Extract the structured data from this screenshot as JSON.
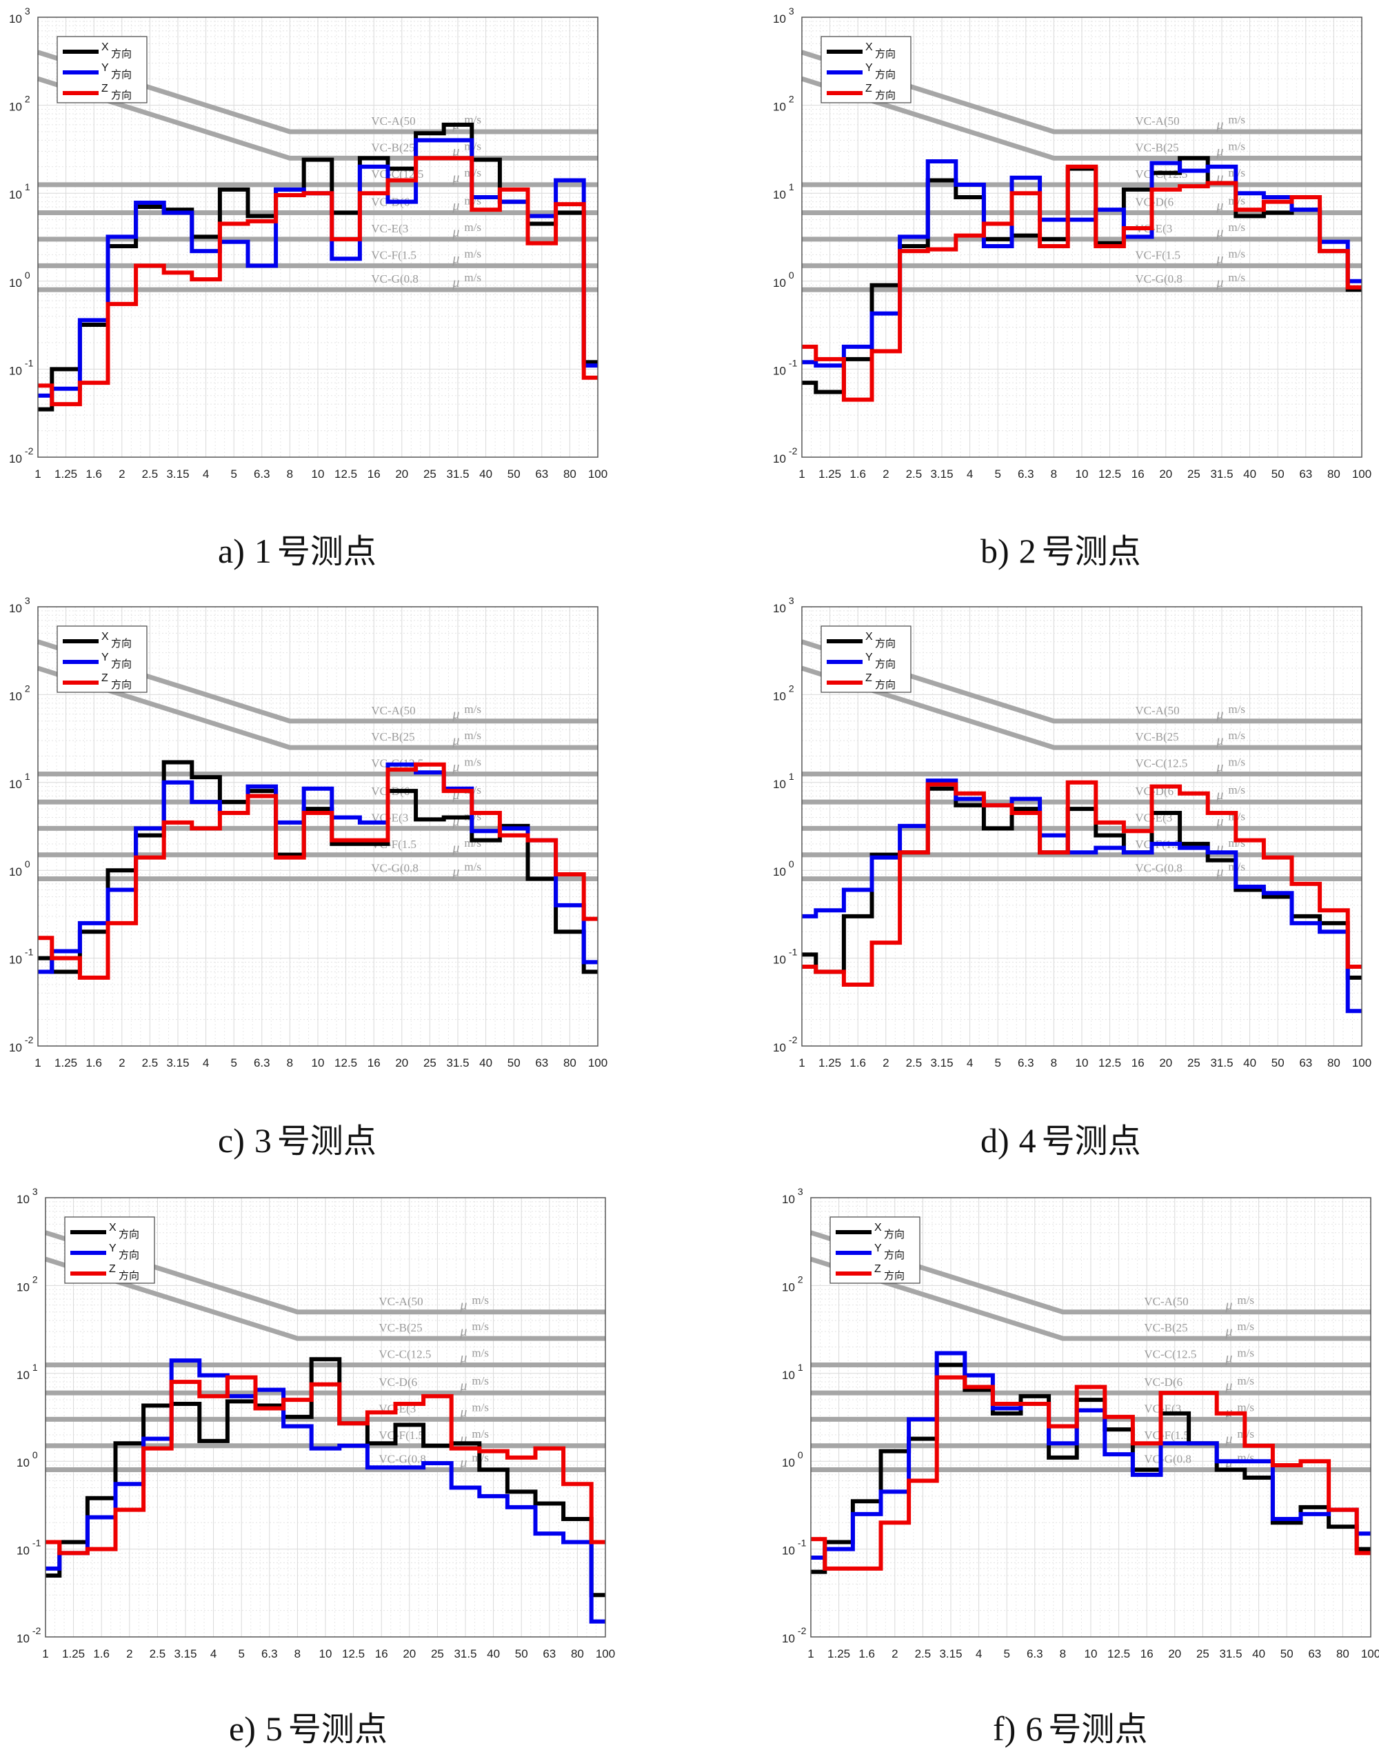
{
  "colors": {
    "X": "#000000",
    "Y": "#0000ee",
    "Z": "#ee0000",
    "criteria": "#a6a6a6",
    "grid": "#d9d9d9"
  },
  "x_tick_labels": [
    "1",
    "1.25",
    "1.6",
    "2",
    "2.5",
    "3.15",
    "4",
    "5",
    "6.3",
    "8",
    "10",
    "12.5",
    "16",
    "20",
    "25",
    "31.5",
    "40",
    "50",
    "63",
    "80",
    "100"
  ],
  "y_tick_labels": [
    {
      "base": "10",
      "exp": "3"
    },
    {
      "base": "10",
      "exp": "2"
    },
    {
      "base": "10",
      "exp": "1"
    },
    {
      "base": "10",
      "exp": "0"
    },
    {
      "base": "10",
      "exp": "-1"
    },
    {
      "base": "10",
      "exp": "-2"
    }
  ],
  "legend": [
    {
      "key": "X",
      "letter": "X",
      "text": "方向"
    },
    {
      "key": "Y",
      "letter": "Y",
      "text": "方向"
    },
    {
      "key": "Z",
      "letter": "Z",
      "text": "方向"
    }
  ],
  "criteria": [
    {
      "label": "VC-A(50",
      "unit": "m/s",
      "value": 50,
      "sloped": true
    },
    {
      "label": "VC-B(25",
      "unit": "m/s",
      "value": 25,
      "sloped": true
    },
    {
      "label": "VC-C(12.5",
      "unit": "m/s",
      "value": 12.5
    },
    {
      "label": "VC-D(6",
      "unit": "m/s",
      "value": 6
    },
    {
      "label": "VC-E(3",
      "unit": "m/s",
      "value": 3
    },
    {
      "label": "VC-F(1.5",
      "unit": "m/s",
      "value": 1.5
    },
    {
      "label": "VC-G(0.8",
      "unit": "m/s",
      "value": 0.8
    }
  ],
  "criteria_mu": "μ",
  "captions": [
    {
      "letter": "a)",
      "num": "1",
      "suffix": "号测点"
    },
    {
      "letter": "b)",
      "num": "2",
      "suffix": "号测点"
    },
    {
      "letter": "c)",
      "num": "3",
      "suffix": "号测点"
    },
    {
      "letter": "d)",
      "num": "4",
      "suffix": "号测点"
    },
    {
      "letter": "e)",
      "num": "5",
      "suffix": "号测点"
    },
    {
      "letter": "f)",
      "num": "6",
      "suffix": "号测点"
    }
  ],
  "chart_data": [
    {
      "type": "line",
      "step": true,
      "log_y": true,
      "ylim": [
        0.01,
        1000
      ],
      "x": [
        1,
        1.25,
        1.6,
        2,
        2.5,
        3.15,
        4,
        5,
        6.3,
        8,
        10,
        12.5,
        16,
        20,
        25,
        31.5,
        40,
        50,
        63,
        80,
        100
      ],
      "series": [
        {
          "name": "X方向",
          "values": [
            0.035,
            0.1,
            0.32,
            2.5,
            7.0,
            6.5,
            3.2,
            11,
            5.5,
            11,
            24,
            6,
            25,
            19,
            48,
            60,
            24,
            8,
            4.5,
            6,
            0.12
          ]
        },
        {
          "name": "Y方向",
          "values": [
            0.05,
            0.06,
            0.36,
            3.2,
            7.8,
            6.0,
            2.2,
            2.8,
            1.5,
            11,
            10,
            1.8,
            20,
            8,
            40,
            40,
            9,
            8,
            5.5,
            14,
            0.11
          ]
        },
        {
          "name": "Z方向",
          "values": [
            0.065,
            0.04,
            0.07,
            0.55,
            1.5,
            1.25,
            1.05,
            4.5,
            4.8,
            9.5,
            10,
            3,
            10,
            14,
            25,
            25,
            6.5,
            11,
            2.7,
            7.5,
            0.08
          ]
        }
      ]
    },
    {
      "type": "line",
      "step": true,
      "log_y": true,
      "ylim": [
        0.01,
        1000
      ],
      "x": [
        1,
        1.25,
        1.6,
        2,
        2.5,
        3.15,
        4,
        5,
        6.3,
        8,
        10,
        12.5,
        16,
        20,
        25,
        31.5,
        40,
        50,
        63,
        80,
        100
      ],
      "series": [
        {
          "name": "X方向",
          "values": [
            0.07,
            0.055,
            0.13,
            0.9,
            2.5,
            14,
            9,
            3,
            3.3,
            3,
            19,
            2.7,
            11,
            17,
            25,
            13,
            5.5,
            6,
            6.5,
            2.2,
            0.8
          ]
        },
        {
          "name": "Y方向",
          "values": [
            0.12,
            0.11,
            0.18,
            0.43,
            3.2,
            23,
            12.5,
            2.5,
            15,
            5,
            5,
            6.5,
            3.2,
            22,
            18,
            20,
            10,
            9,
            6.5,
            2.8,
            1.0
          ]
        },
        {
          "name": "Z方向",
          "values": [
            0.18,
            0.13,
            0.045,
            0.16,
            2.2,
            2.3,
            3.3,
            4.5,
            10,
            2.5,
            20,
            2.5,
            4,
            11,
            12,
            13,
            6.5,
            8,
            9,
            2.2,
            0.85
          ]
        }
      ]
    },
    {
      "type": "line",
      "step": true,
      "log_y": true,
      "ylim": [
        0.01,
        1000
      ],
      "x": [
        1,
        1.25,
        1.6,
        2,
        2.5,
        3.15,
        4,
        5,
        6.3,
        8,
        10,
        12.5,
        16,
        20,
        25,
        31.5,
        40,
        50,
        63,
        80,
        100
      ],
      "series": [
        {
          "name": "X方向",
          "values": [
            0.1,
            0.07,
            0.2,
            1.0,
            2.5,
            17,
            11.5,
            6,
            8,
            1.5,
            5,
            2,
            2,
            8,
            3.8,
            4,
            2.2,
            3.2,
            0.8,
            0.2,
            0.07
          ]
        },
        {
          "name": "Y方向",
          "values": [
            0.07,
            0.12,
            0.25,
            0.6,
            3.0,
            10,
            6,
            4.5,
            9,
            3.5,
            8.5,
            4,
            3.5,
            16,
            13,
            8.5,
            2.8,
            3.0,
            2.2,
            0.4,
            0.09
          ]
        },
        {
          "name": "Z方向",
          "values": [
            0.17,
            0.1,
            0.06,
            0.25,
            1.4,
            3.5,
            3.0,
            4.5,
            7,
            1.4,
            4.5,
            2.2,
            2.2,
            14,
            16,
            8,
            4.5,
            2.5,
            2.2,
            0.9,
            0.28
          ]
        }
      ]
    },
    {
      "type": "line",
      "step": true,
      "log_y": true,
      "ylim": [
        0.01,
        1000
      ],
      "x": [
        1,
        1.25,
        1.6,
        2,
        2.5,
        3.15,
        4,
        5,
        6.3,
        8,
        10,
        12.5,
        16,
        20,
        25,
        31.5,
        40,
        50,
        63,
        80,
        100
      ],
      "series": [
        {
          "name": "X方向",
          "values": [
            0.11,
            0.07,
            0.3,
            1.5,
            1.6,
            8.5,
            5.5,
            3,
            5,
            1.6,
            5,
            2.5,
            1.6,
            4.5,
            2,
            1.3,
            0.6,
            0.5,
            0.3,
            0.25,
            0.06
          ]
        },
        {
          "name": "Y方向",
          "values": [
            0.3,
            0.35,
            0.6,
            1.4,
            3.2,
            10.5,
            6.5,
            5.5,
            6.5,
            2.5,
            1.6,
            1.8,
            1.6,
            2,
            1.8,
            1.6,
            0.65,
            0.55,
            0.25,
            0.2,
            0.025
          ]
        },
        {
          "name": "Z方向",
          "values": [
            0.08,
            0.07,
            0.05,
            0.15,
            1.6,
            9.5,
            7.5,
            5.5,
            4.5,
            1.6,
            10,
            3.5,
            2.8,
            9,
            7.5,
            4.5,
            2.2,
            1.4,
            0.7,
            0.35,
            0.08
          ]
        }
      ]
    },
    {
      "type": "line",
      "step": true,
      "log_y": true,
      "ylim": [
        0.01,
        1000
      ],
      "x": [
        1,
        1.25,
        1.6,
        2,
        2.5,
        3.15,
        4,
        5,
        6.3,
        8,
        10,
        12.5,
        16,
        20,
        25,
        31.5,
        40,
        50,
        63,
        80,
        100
      ],
      "series": [
        {
          "name": "X方向",
          "values": [
            0.05,
            0.12,
            0.38,
            1.6,
            4.3,
            4.5,
            1.7,
            4.8,
            4.3,
            3.2,
            14.5,
            2.7,
            1.6,
            2.6,
            1.5,
            1.6,
            0.8,
            0.45,
            0.33,
            0.22,
            0.03
          ]
        },
        {
          "name": "Y方向",
          "values": [
            0.06,
            0.09,
            0.23,
            0.55,
            1.8,
            14,
            9.5,
            5.5,
            6.5,
            2.5,
            1.4,
            1.5,
            0.85,
            0.85,
            0.95,
            0.5,
            0.4,
            0.3,
            0.15,
            0.12,
            0.015
          ]
        },
        {
          "name": "Z方向",
          "values": [
            0.12,
            0.09,
            0.1,
            0.28,
            1.4,
            8,
            5.5,
            9,
            4,
            5,
            7.5,
            2.7,
            3.6,
            4.5,
            5.5,
            1.4,
            1.3,
            1.1,
            1.4,
            0.55,
            0.12
          ]
        }
      ]
    },
    {
      "type": "line",
      "step": true,
      "log_y": true,
      "ylim": [
        0.01,
        1000
      ],
      "x": [
        1,
        1.25,
        1.6,
        2,
        2.5,
        3.15,
        4,
        5,
        6.3,
        8,
        10,
        12.5,
        16,
        20,
        25,
        31.5,
        40,
        50,
        63,
        80,
        100
      ],
      "series": [
        {
          "name": "X方向",
          "values": [
            0.055,
            0.12,
            0.35,
            1.3,
            1.8,
            12.5,
            6.5,
            3.5,
            5.5,
            1.1,
            5,
            2.3,
            0.8,
            3.5,
            1.6,
            0.8,
            0.65,
            0.2,
            0.3,
            0.18,
            0.1
          ]
        },
        {
          "name": "Y方向",
          "values": [
            0.08,
            0.1,
            0.25,
            0.45,
            3.0,
            17,
            9.5,
            4,
            4.5,
            1.6,
            3.8,
            1.2,
            0.7,
            1.6,
            1.6,
            1.0,
            1.0,
            0.22,
            0.25,
            0.28,
            0.15
          ]
        },
        {
          "name": "Z方向",
          "values": [
            0.13,
            0.06,
            0.06,
            0.2,
            0.6,
            9,
            7,
            4.5,
            4.5,
            2.5,
            7,
            3.2,
            1.6,
            6,
            6,
            3.5,
            1.5,
            0.9,
            1.0,
            0.28,
            0.09
          ]
        }
      ]
    }
  ]
}
